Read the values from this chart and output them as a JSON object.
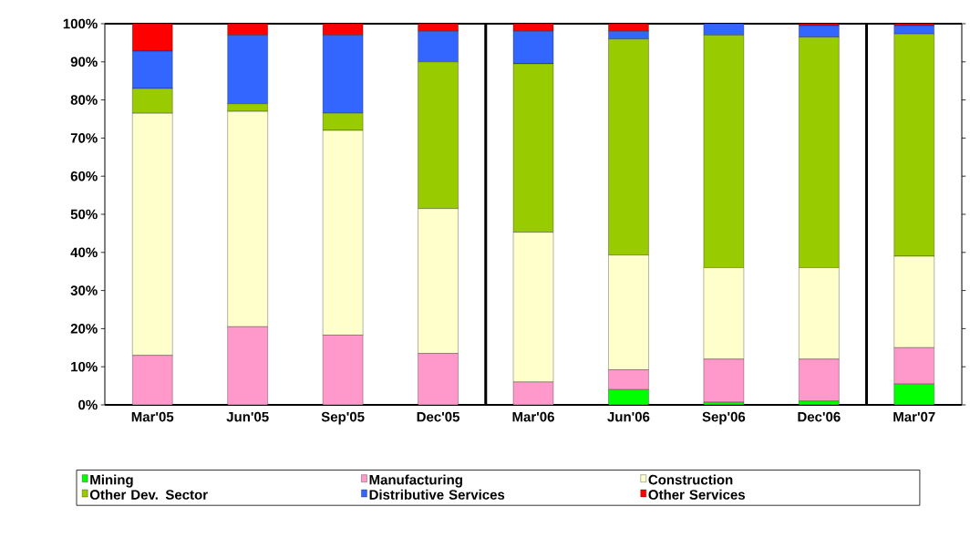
{
  "chart_data": {
    "type": "bar",
    "stacked": true,
    "categories": [
      "Mar'05",
      "Jun'05",
      "Sep'05",
      "Dec'05",
      "Mar'06",
      "Jun'06",
      "Sep'06",
      "Dec'06",
      "Mar'07"
    ],
    "series": [
      {
        "name": "Mining",
        "color": "#00ff00",
        "values": [
          0,
          0,
          0,
          0,
          0,
          4,
          0.7,
          1,
          5.5
        ]
      },
      {
        "name": "Manufacturing",
        "color": "#ff99cc",
        "values": [
          13,
          20.5,
          18.3,
          13.5,
          6,
          5.2,
          11.3,
          11,
          9.5
        ]
      },
      {
        "name": "Construction",
        "color": "#ffffcc",
        "values": [
          63.5,
          56.5,
          53.7,
          38,
          39.3,
          30.1,
          24,
          24,
          24
        ]
      },
      {
        "name": "Other Dev. Sector",
        "color": "#99cc00",
        "values": [
          6.5,
          2,
          4.5,
          38.5,
          44.2,
          56.7,
          61,
          60.5,
          58.3
        ]
      },
      {
        "name": "Distributive Services",
        "color": "#3366ff",
        "values": [
          9.8,
          18,
          20.5,
          8,
          8.5,
          2,
          3,
          3,
          2.2
        ]
      },
      {
        "name": "Other Services",
        "color": "#ff0000",
        "values": [
          7.2,
          3,
          3,
          2,
          2,
          2,
          0,
          0.5,
          0.5
        ]
      }
    ],
    "ylim": [
      0,
      100
    ],
    "yticks": [
      {
        "value": 0,
        "label": "0%"
      },
      {
        "value": 10,
        "label": "10%"
      },
      {
        "value": 20,
        "label": "20%"
      },
      {
        "value": 30,
        "label": "30%"
      },
      {
        "value": 40,
        "label": "40%"
      },
      {
        "value": 50,
        "label": "50%"
      },
      {
        "value": 60,
        "label": "60%"
      },
      {
        "value": 70,
        "label": "70%"
      },
      {
        "value": 80,
        "label": "80%"
      },
      {
        "value": 90,
        "label": "90%"
      },
      {
        "value": 100,
        "label": "100%"
      }
    ],
    "grid": false,
    "legend": "bottom"
  }
}
